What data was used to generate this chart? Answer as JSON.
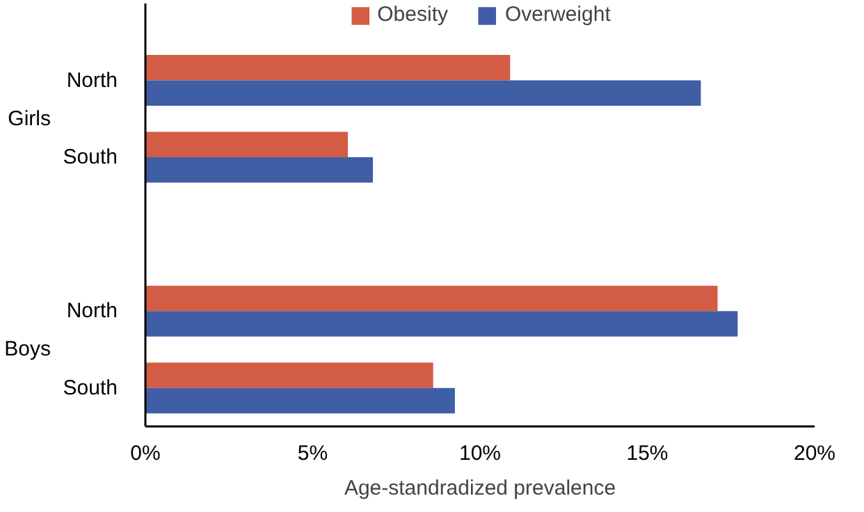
{
  "chart_data": {
    "type": "bar",
    "orientation": "horizontal",
    "categories": [
      "North",
      "South",
      null,
      "North",
      "South"
    ],
    "series": [
      {
        "name": "Obesity",
        "color": "#d35c45",
        "values": [
          10.9,
          6.05,
          null,
          17.1,
          8.6
        ]
      },
      {
        "name": "Overweight",
        "color": "#3f5ea6",
        "values": [
          16.6,
          6.8,
          null,
          17.7,
          9.25
        ]
      }
    ],
    "xlabel": "Age-standradized prevalence",
    "annotations": [
      "Girls",
      "Boys"
    ],
    "xlim": [
      0,
      20
    ],
    "xticks": [
      {
        "value": 0,
        "label": "0%"
      },
      {
        "value": 5,
        "label": "5%"
      },
      {
        "value": 10,
        "label": "10%"
      },
      {
        "value": 15,
        "label": "15%"
      },
      {
        "value": 20,
        "label": "20%"
      }
    ],
    "grid": false,
    "legend": "top"
  }
}
